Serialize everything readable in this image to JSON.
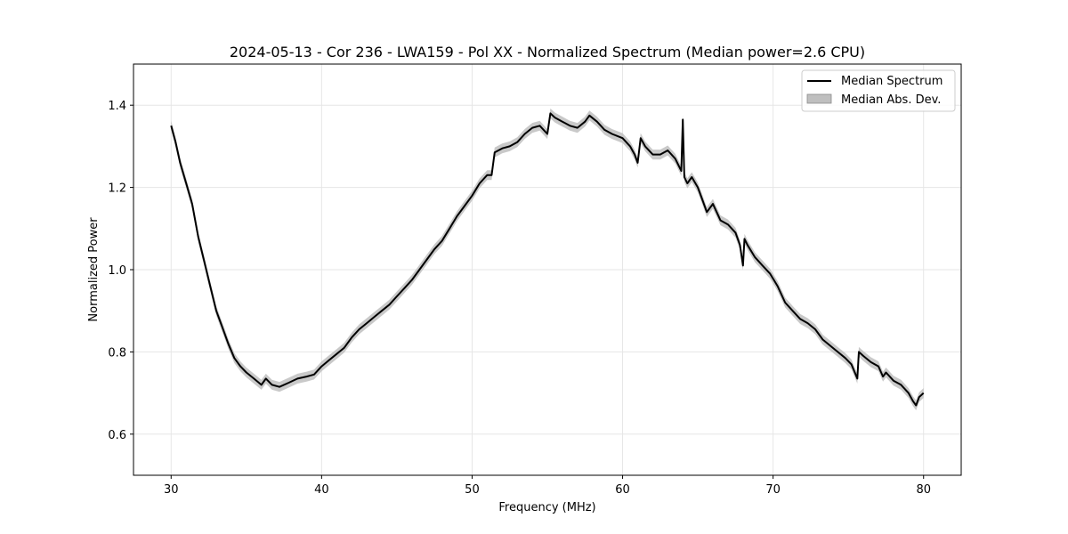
{
  "chart_data": {
    "type": "line",
    "title": "2024-05-13 - Cor 236 - LWA159 - Pol XX - Normalized Spectrum (Median power=2.6 CPU)",
    "xlabel": "Frequency (MHz)",
    "ylabel": "Normalized Power",
    "xlim": [
      27.5,
      82.5
    ],
    "ylim": [
      0.5,
      1.5
    ],
    "xticks": [
      30,
      40,
      50,
      60,
      70,
      80
    ],
    "xtick_labels": [
      "30",
      "40",
      "50",
      "60",
      "70",
      "80"
    ],
    "yticks": [
      0.6,
      0.8,
      1.0,
      1.2,
      1.4
    ],
    "ytick_labels": [
      "0.6",
      "0.8",
      "1.0",
      "1.2",
      "1.4"
    ],
    "grid": true,
    "legend_position": "top-right",
    "series": [
      {
        "name": "Median Spectrum",
        "kind": "line",
        "color": "#000000",
        "x": [
          30.0,
          30.3,
          30.6,
          31.0,
          31.4,
          31.8,
          32.2,
          32.6,
          33.0,
          33.4,
          33.8,
          34.2,
          34.6,
          35.0,
          35.5,
          36.0,
          36.3,
          36.7,
          37.2,
          37.8,
          38.4,
          39.0,
          39.5,
          40.0,
          40.5,
          41.0,
          41.5,
          42.0,
          42.5,
          43.0,
          43.5,
          44.0,
          44.5,
          45.0,
          45.5,
          46.0,
          46.5,
          47.0,
          47.5,
          48.0,
          48.5,
          49.0,
          49.5,
          50.0,
          50.5,
          51.0,
          51.3,
          51.5,
          52.0,
          52.5,
          53.0,
          53.5,
          54.0,
          54.5,
          55.0,
          55.2,
          55.5,
          56.0,
          56.5,
          57.0,
          57.5,
          57.8,
          58.3,
          58.8,
          59.3,
          60.0,
          60.5,
          60.8,
          61.0,
          61.2,
          61.5,
          62.0,
          62.5,
          63.0,
          63.5,
          63.9,
          64.0,
          64.1,
          64.3,
          64.6,
          65.0,
          65.3,
          65.6,
          66.0,
          66.5,
          67.0,
          67.5,
          67.8,
          68.0,
          68.1,
          68.3,
          68.8,
          69.3,
          69.8,
          70.3,
          70.8,
          71.3,
          71.8,
          72.3,
          72.8,
          73.3,
          73.8,
          74.3,
          74.8,
          75.2,
          75.6,
          75.7,
          76.0,
          76.5,
          77.0,
          77.3,
          77.5,
          78.0,
          78.5,
          79.0,
          79.3,
          79.5,
          79.7,
          80.0
        ],
        "y": [
          1.35,
          1.31,
          1.26,
          1.21,
          1.16,
          1.08,
          1.02,
          0.96,
          0.9,
          0.86,
          0.82,
          0.785,
          0.765,
          0.75,
          0.735,
          0.72,
          0.735,
          0.72,
          0.715,
          0.725,
          0.735,
          0.74,
          0.745,
          0.765,
          0.78,
          0.795,
          0.81,
          0.835,
          0.855,
          0.87,
          0.885,
          0.9,
          0.915,
          0.935,
          0.955,
          0.975,
          1.0,
          1.025,
          1.05,
          1.07,
          1.1,
          1.13,
          1.155,
          1.18,
          1.21,
          1.23,
          1.23,
          1.285,
          1.295,
          1.3,
          1.31,
          1.33,
          1.345,
          1.35,
          1.33,
          1.38,
          1.37,
          1.36,
          1.35,
          1.345,
          1.36,
          1.375,
          1.36,
          1.34,
          1.33,
          1.32,
          1.3,
          1.28,
          1.26,
          1.32,
          1.3,
          1.28,
          1.28,
          1.29,
          1.27,
          1.24,
          1.365,
          1.225,
          1.21,
          1.225,
          1.2,
          1.17,
          1.14,
          1.16,
          1.12,
          1.11,
          1.09,
          1.06,
          1.01,
          1.075,
          1.06,
          1.03,
          1.01,
          0.99,
          0.96,
          0.92,
          0.9,
          0.88,
          0.87,
          0.855,
          0.83,
          0.815,
          0.8,
          0.785,
          0.77,
          0.735,
          0.8,
          0.79,
          0.775,
          0.765,
          0.74,
          0.75,
          0.73,
          0.72,
          0.7,
          0.68,
          0.67,
          0.69,
          0.7
        ]
      },
      {
        "name": "Median Abs. Dev.",
        "kind": "band",
        "color": "#bfbfbf",
        "half_width": 0.012
      }
    ]
  }
}
